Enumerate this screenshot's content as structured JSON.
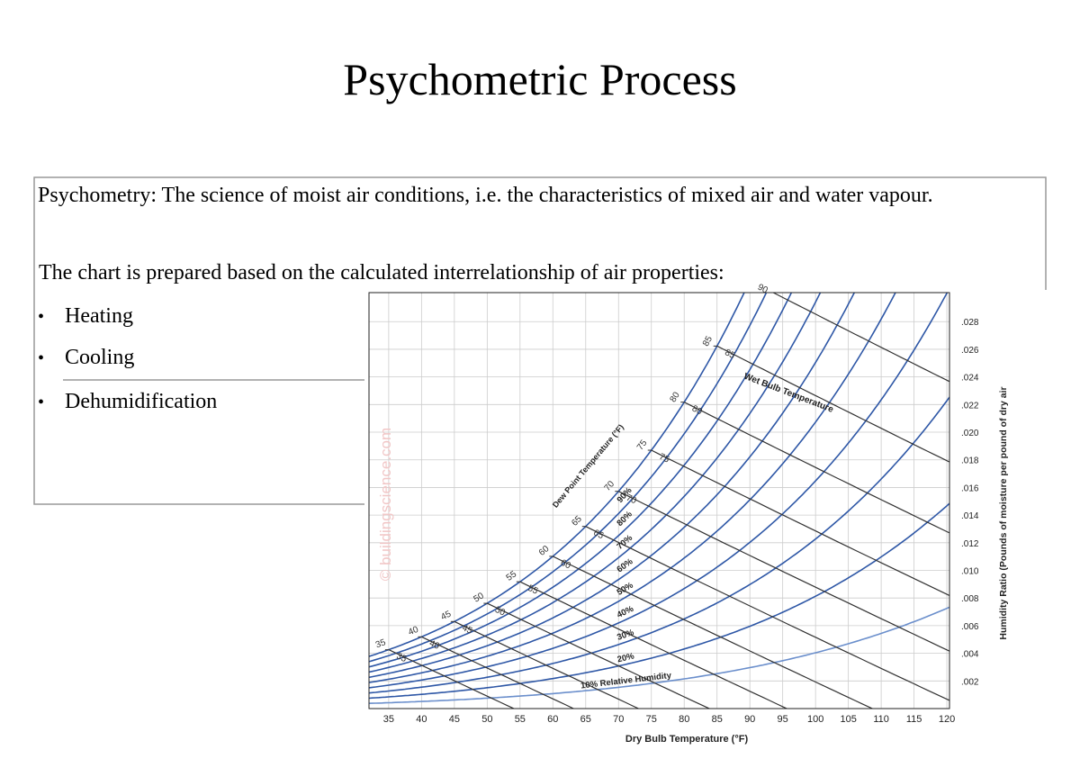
{
  "title": "Psychometric Process",
  "box": {
    "paragraphs": [
      "Psychometry: The science of moist air conditions, i.e. the characteristics of mixed air and water vapour.",
      "The chart is prepared based on the calculated interrelationship of air properties:"
    ],
    "bullets": [
      "Heating",
      "Cooling",
      "Dehumidification"
    ]
  },
  "figure": {
    "watermark": "© buildingscience.com",
    "x_axis": {
      "label": "Dry Bulb Temperature (°F)",
      "lim": [
        32,
        120.4
      ],
      "ticks": [
        35,
        40,
        45,
        50,
        55,
        60,
        65,
        70,
        75,
        80,
        85,
        90,
        95,
        100,
        105,
        110,
        115,
        120
      ]
    },
    "y_axis": {
      "label": "Humidity Ratio (Pounds of moisture per pound of dry air",
      "lim": [
        0,
        0.0301
      ],
      "ticks": [
        {
          "value": 0.002,
          "label": ".002"
        },
        {
          "value": 0.004,
          "label": ".004"
        },
        {
          "value": 0.006,
          "label": ".006"
        },
        {
          "value": 0.008,
          "label": ".008"
        },
        {
          "value": 0.01,
          "label": ".010"
        },
        {
          "value": 0.012,
          "label": ".012"
        },
        {
          "value": 0.014,
          "label": ".014"
        },
        {
          "value": 0.016,
          "label": ".016"
        },
        {
          "value": 0.018,
          "label": ".018"
        },
        {
          "value": 0.02,
          "label": ".020"
        },
        {
          "value": 0.022,
          "label": ".022"
        },
        {
          "value": 0.024,
          "label": ".024"
        },
        {
          "value": 0.026,
          "label": ".026"
        },
        {
          "value": 0.028,
          "label": ".028"
        }
      ]
    },
    "relative_humidity": [
      {
        "value": 10,
        "label": "10% Relative Humidity"
      },
      {
        "value": 20,
        "label": "20%"
      },
      {
        "value": 30,
        "label": "30%"
      },
      {
        "value": 40,
        "label": "40%"
      },
      {
        "value": 50,
        "label": "50%"
      },
      {
        "value": 60,
        "label": "60%"
      },
      {
        "value": 70,
        "label": "70%"
      },
      {
        "value": 80,
        "label": "80%"
      },
      {
        "value": 90,
        "label": "90%"
      },
      {
        "value": 100
      }
    ],
    "dew_point": {
      "label": "Dew Point Temperature (°F)",
      "values": [
        35,
        40,
        45,
        50,
        55,
        60,
        65,
        70,
        75,
        80,
        85
      ]
    },
    "wet_bulb": {
      "label": "Wet Bulb Temperature",
      "values": [
        35,
        40,
        45,
        50,
        55,
        60,
        65,
        70,
        75,
        80,
        85,
        90
      ]
    }
  }
}
